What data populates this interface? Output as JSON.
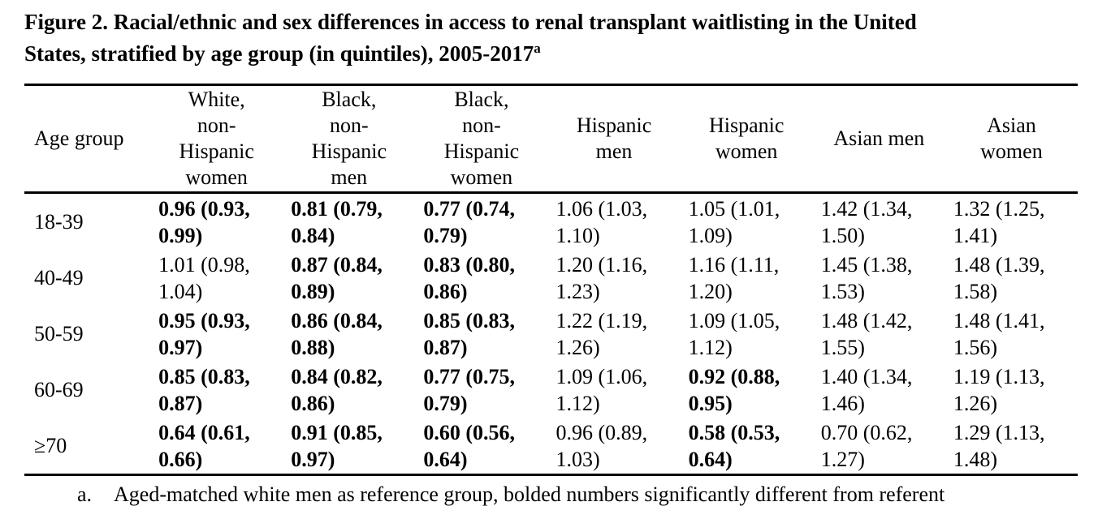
{
  "title": {
    "text": "Figure 2. Racial/ethnic and sex differences in access to renal transplant waitlisting in the United\nStates, stratified by age group (in quintiles), 2005-2017",
    "superscript": "a"
  },
  "table": {
    "headers": [
      "Age group",
      "White,\nnon-\nHispanic\nwomen",
      "Black,\nnon-\nHispanic\nmen",
      "Black,\nnon-\nHispanic\nwomen",
      "Hispanic\nmen",
      "Hispanic\nwomen",
      "Asian men",
      "Asian\nwomen"
    ],
    "rows": [
      {
        "age": "18-39",
        "cells": [
          {
            "text": "0.96 (0.93, 0.99)",
            "bold": true
          },
          {
            "text": "0.81 (0.79, 0.84)",
            "bold": true
          },
          {
            "text": "0.77 (0.74, 0.79)",
            "bold": true
          },
          {
            "text": "1.06 (1.03, 1.10)",
            "bold": false
          },
          {
            "text": "1.05 (1.01, 1.09)",
            "bold": false
          },
          {
            "text": "1.42 (1.34, 1.50)",
            "bold": false
          },
          {
            "text": "1.32 (1.25, 1.41)",
            "bold": false
          }
        ]
      },
      {
        "age": "40-49",
        "cells": [
          {
            "text": "1.01 (0.98, 1.04)",
            "bold": false
          },
          {
            "text": "0.87 (0.84, 0.89)",
            "bold": true
          },
          {
            "text": "0.83 (0.80, 0.86)",
            "bold": true
          },
          {
            "text": "1.20 (1.16, 1.23)",
            "bold": false
          },
          {
            "text": "1.16 (1.11, 1.20)",
            "bold": false
          },
          {
            "text": "1.45 (1.38, 1.53)",
            "bold": false
          },
          {
            "text": "1.48 (1.39, 1.58)",
            "bold": false
          }
        ]
      },
      {
        "age": "50-59",
        "cells": [
          {
            "text": "0.95 (0.93, 0.97)",
            "bold": true
          },
          {
            "text": "0.86 (0.84, 0.88)",
            "bold": true
          },
          {
            "text": "0.85 (0.83, 0.87)",
            "bold": true
          },
          {
            "text": "1.22 (1.19, 1.26)",
            "bold": false
          },
          {
            "text": "1.09 (1.05, 1.12)",
            "bold": false
          },
          {
            "text": "1.48 (1.42, 1.55)",
            "bold": false
          },
          {
            "text": "1.48 (1.41, 1.56)",
            "bold": false
          }
        ]
      },
      {
        "age": "60-69",
        "cells": [
          {
            "text": "0.85 (0.83, 0.87)",
            "bold": true
          },
          {
            "text": "0.84 (0.82, 0.86)",
            "bold": true
          },
          {
            "text": "0.77 (0.75, 0.79)",
            "bold": true
          },
          {
            "text": "1.09 (1.06, 1.12)",
            "bold": false
          },
          {
            "text": "0.92 (0.88, 0.95)",
            "bold": true
          },
          {
            "text": "1.40 (1.34, 1.46)",
            "bold": false
          },
          {
            "text": "1.19 (1.13, 1.26)",
            "bold": false
          }
        ]
      },
      {
        "age": "≥70",
        "cells": [
          {
            "text": "0.64 (0.61, 0.66)",
            "bold": true
          },
          {
            "text": "0.91 (0.85, 0.97)",
            "bold": true
          },
          {
            "text": "0.60 (0.56, 0.64)",
            "bold": true
          },
          {
            "text": "0.96 (0.89, 1.03)",
            "bold": false
          },
          {
            "text": "0.58 (0.53, 0.64)",
            "bold": true
          },
          {
            "text": "0.70 (0.62, 1.27)",
            "bold": false
          },
          {
            "text": "1.29 (1.13, 1.48)",
            "bold": false
          }
        ]
      }
    ]
  },
  "footnote": {
    "marker": "a.",
    "text": "Aged-matched white men as reference group, bolded numbers significantly different from referent"
  },
  "colors": {
    "text": "#000000",
    "background": "#ffffff",
    "rule": "#000000"
  }
}
